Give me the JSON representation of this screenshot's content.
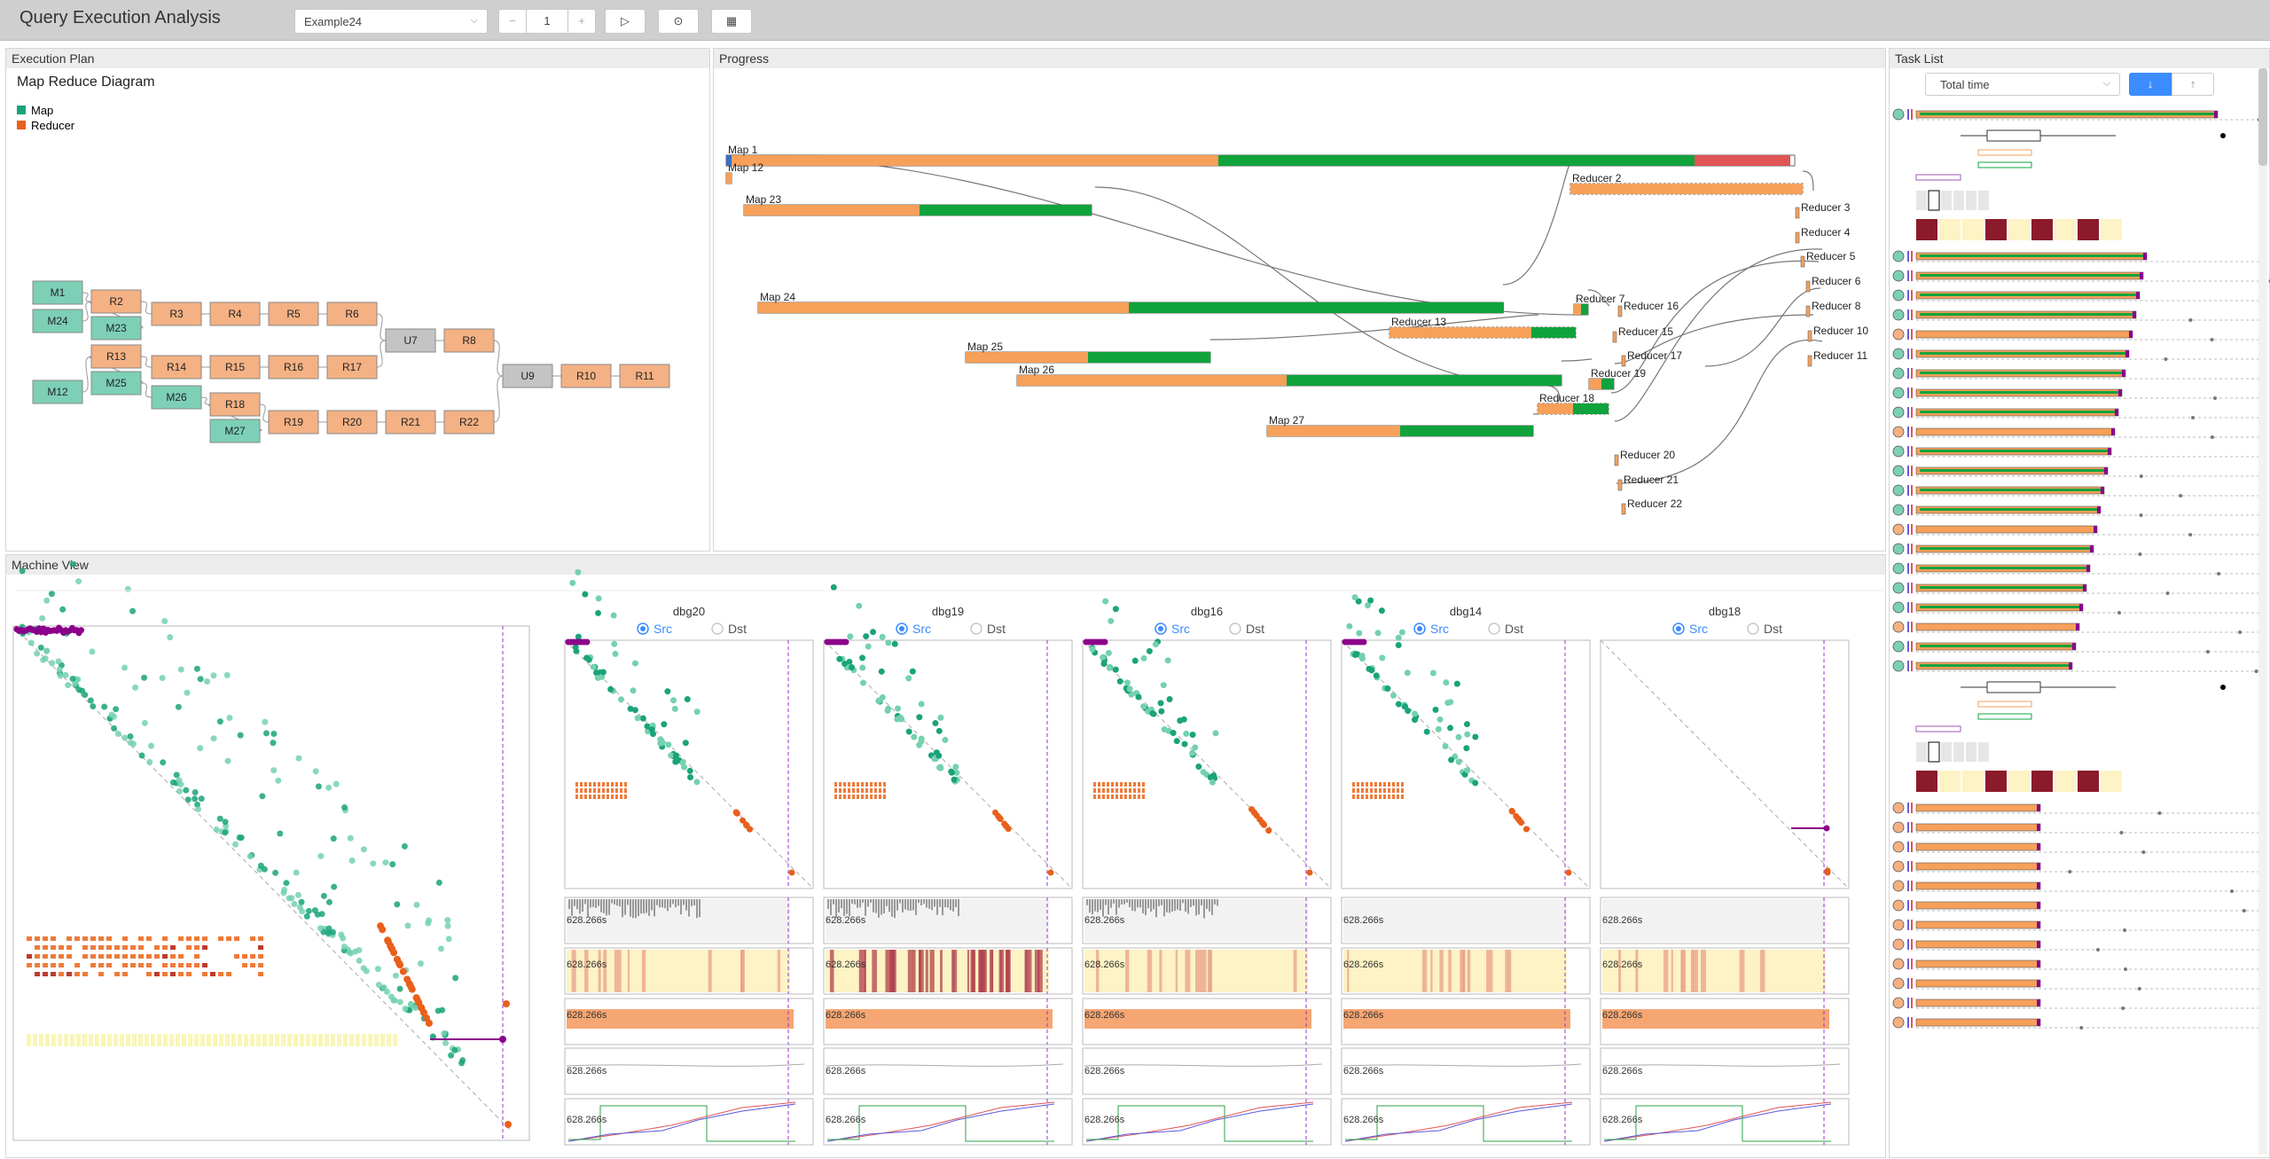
{
  "app": {
    "title": "Query Execution Analysis"
  },
  "toolbar": {
    "dataset": "Example24",
    "step_value": "1",
    "minus": "−",
    "plus": "+",
    "play": "▷",
    "stop": "⊙",
    "save": "▦"
  },
  "panels": {
    "plan": "Execution Plan",
    "progress": "Progress",
    "machine": "Machine View",
    "tasks": "Task List"
  },
  "plan": {
    "diagram_title": "Map Reduce Diagram",
    "legend": [
      {
        "label": "Map",
        "color": "#1aa37a"
      },
      {
        "label": "Reducer",
        "color": "#e8601c"
      }
    ],
    "nodes": [
      {
        "id": "M1",
        "kind": "map"
      },
      {
        "id": "M24",
        "kind": "map"
      },
      {
        "id": "M12",
        "kind": "map"
      },
      {
        "id": "R2",
        "kind": "reduce"
      },
      {
        "id": "M23",
        "kind": "map"
      },
      {
        "id": "R13",
        "kind": "reduce"
      },
      {
        "id": "M25",
        "kind": "map"
      },
      {
        "id": "M26",
        "kind": "map"
      },
      {
        "id": "R3",
        "kind": "reduce"
      },
      {
        "id": "R4",
        "kind": "reduce"
      },
      {
        "id": "R5",
        "kind": "reduce"
      },
      {
        "id": "R6",
        "kind": "reduce"
      },
      {
        "id": "R14",
        "kind": "reduce"
      },
      {
        "id": "R15",
        "kind": "reduce"
      },
      {
        "id": "R16",
        "kind": "reduce"
      },
      {
        "id": "R17",
        "kind": "reduce"
      },
      {
        "id": "R18",
        "kind": "reduce"
      },
      {
        "id": "M27",
        "kind": "map"
      },
      {
        "id": "R19",
        "kind": "reduce"
      },
      {
        "id": "R20",
        "kind": "reduce"
      },
      {
        "id": "R21",
        "kind": "reduce"
      },
      {
        "id": "R22",
        "kind": "reduce"
      },
      {
        "id": "U7",
        "kind": "union"
      },
      {
        "id": "R8",
        "kind": "reduce"
      },
      {
        "id": "U9",
        "kind": "union"
      },
      {
        "id": "R10",
        "kind": "reduce"
      },
      {
        "id": "R11",
        "kind": "reduce"
      }
    ]
  },
  "progress": {
    "tasks": [
      "Map 1",
      "Map 12",
      "Map 23",
      "Map 24",
      "Map 25",
      "Map 26",
      "Map 27",
      "Reducer 2",
      "Reducer 3",
      "Reducer 4",
      "Reducer 5",
      "Reducer 6",
      "Reducer 8",
      "Reducer 10",
      "Reducer 11",
      "Reducer 7",
      "Reducer 16",
      "Reducer 15",
      "Reducer 13",
      "Reducer 17",
      "Reducer 19",
      "Reducer 18",
      "Reducer 20",
      "Reducer 21",
      "Reducer 22"
    ]
  },
  "machine": {
    "time_label": "628.266s",
    "radio_src": "Src",
    "radio_dst": "Dst",
    "machines": [
      "dbg20",
      "dbg19",
      "dbg16",
      "dbg14",
      "dbg18"
    ]
  },
  "tasklist": {
    "sort_by": "Total time",
    "sort_desc": "↓",
    "sort_asc": "↑"
  },
  "colors": {
    "map": "#1aa37a",
    "reduce": "#f4a266",
    "green": "#10a33c",
    "red": "#e05555",
    "purple": "#800080"
  }
}
